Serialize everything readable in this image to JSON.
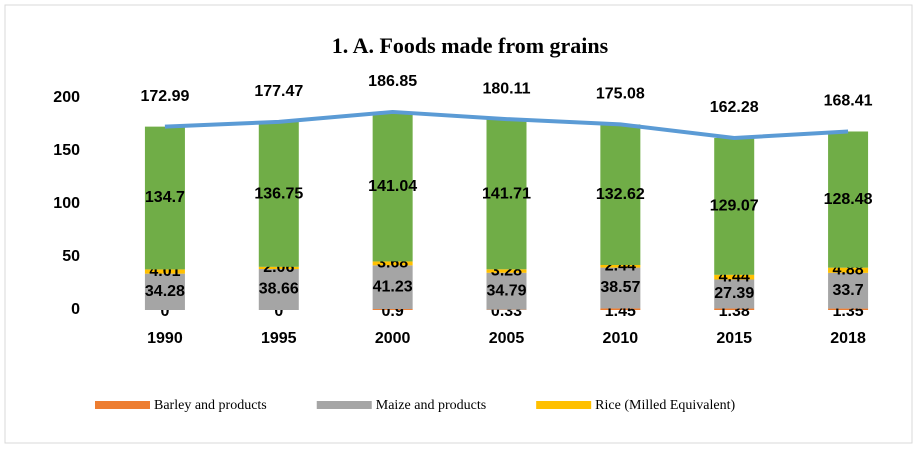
{
  "chart_data": {
    "type": "bar",
    "stacked": true,
    "title": "1. A. Foods made from grains",
    "categories": [
      "1990",
      "1995",
      "2000",
      "2005",
      "2010",
      "2015",
      "2018"
    ],
    "series": [
      {
        "name": "Barley and products",
        "color": "#ed7d31",
        "values": [
          0,
          0,
          0.9,
          0.33,
          1.45,
          1.38,
          1.35
        ]
      },
      {
        "name": "Maize and products",
        "color": "#a5a5a5",
        "values": [
          34.28,
          38.66,
          41.23,
          34.79,
          38.57,
          27.39,
          33.7
        ]
      },
      {
        "name": "Rice (Milled Equivalent)",
        "color": "#ffc000",
        "values": [
          4.01,
          2.06,
          3.68,
          3.28,
          2.44,
          4.44,
          4.88
        ]
      },
      {
        "color": "#70ad47",
        "values": [
          134.7,
          136.75,
          141.04,
          141.71,
          132.62,
          129.07,
          128.48
        ]
      }
    ],
    "line": {
      "type": "line",
      "color": "#5b9bd5",
      "values": [
        172.99,
        177.47,
        186.85,
        180.11,
        175.08,
        162.28,
        168.41
      ]
    },
    "ylim": [
      0,
      200
    ],
    "yticks": [
      0,
      50,
      100,
      150,
      200
    ],
    "legend": "bottom",
    "grid": false
  }
}
